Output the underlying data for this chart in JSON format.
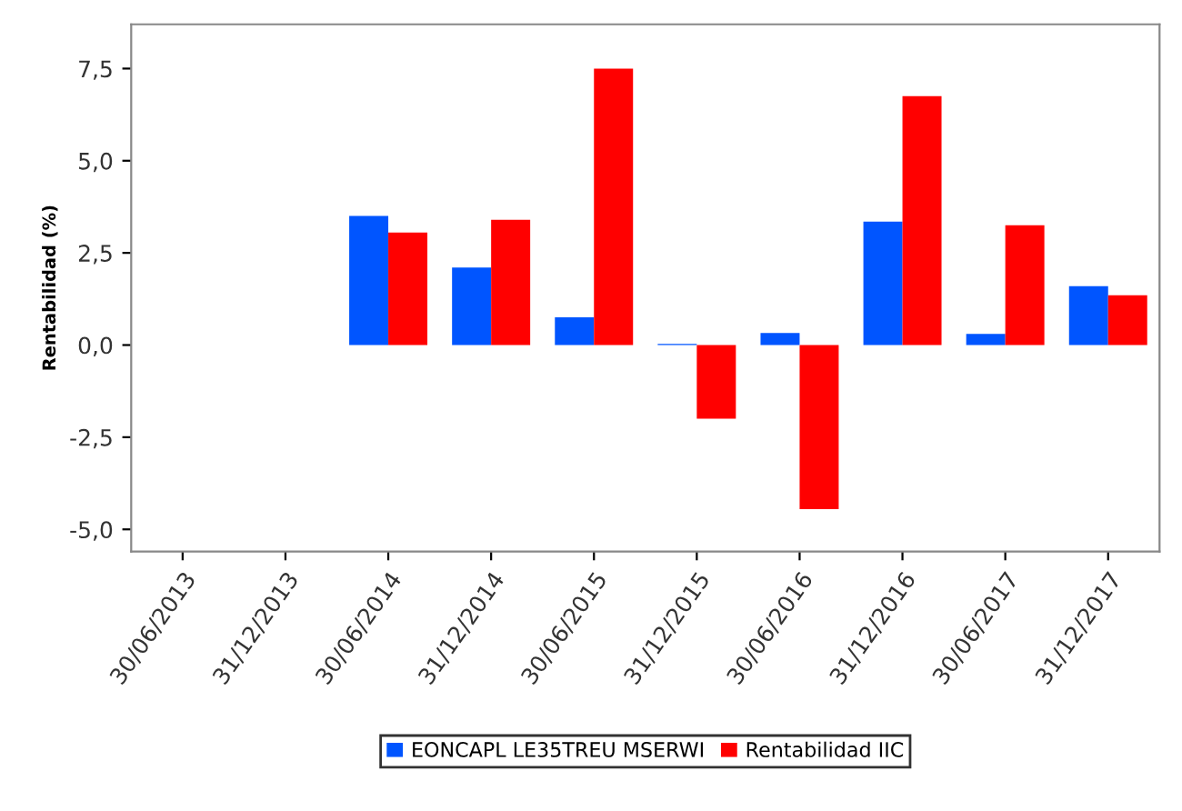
{
  "chart_data": {
    "type": "bar",
    "ylabel": "Rentabilidad (%)",
    "categories": [
      "30/06/2013",
      "31/12/2013",
      "30/06/2014",
      "31/12/2014",
      "30/06/2015",
      "31/12/2015",
      "30/06/2016",
      "31/12/2016",
      "30/06/2017",
      "31/12/2017"
    ],
    "series": [
      {
        "name": "EONCAPL LE35TREU MSERWI",
        "color": "#0055ff",
        "values": [
          null,
          null,
          3.5,
          2.1,
          0.75,
          0.03,
          0.33,
          3.35,
          0.3,
          1.6
        ]
      },
      {
        "name": "Rentabilidad IIC",
        "color": "#ff0000",
        "values": [
          null,
          null,
          3.05,
          3.4,
          7.5,
          -2.0,
          -4.45,
          6.75,
          3.25,
          1.35
        ]
      }
    ],
    "ylim": [
      -5.6,
      8.7
    ],
    "yticks": [
      {
        "value": -5,
        "label": "-5,0"
      },
      {
        "value": -2.5,
        "label": "-2,5"
      },
      {
        "value": 0,
        "label": "0,0"
      },
      {
        "value": 2.5,
        "label": "2,5"
      },
      {
        "value": 5,
        "label": "5,0"
      },
      {
        "value": 7.5,
        "label": "7,5"
      }
    ],
    "grid": false,
    "legend": "bottom"
  }
}
